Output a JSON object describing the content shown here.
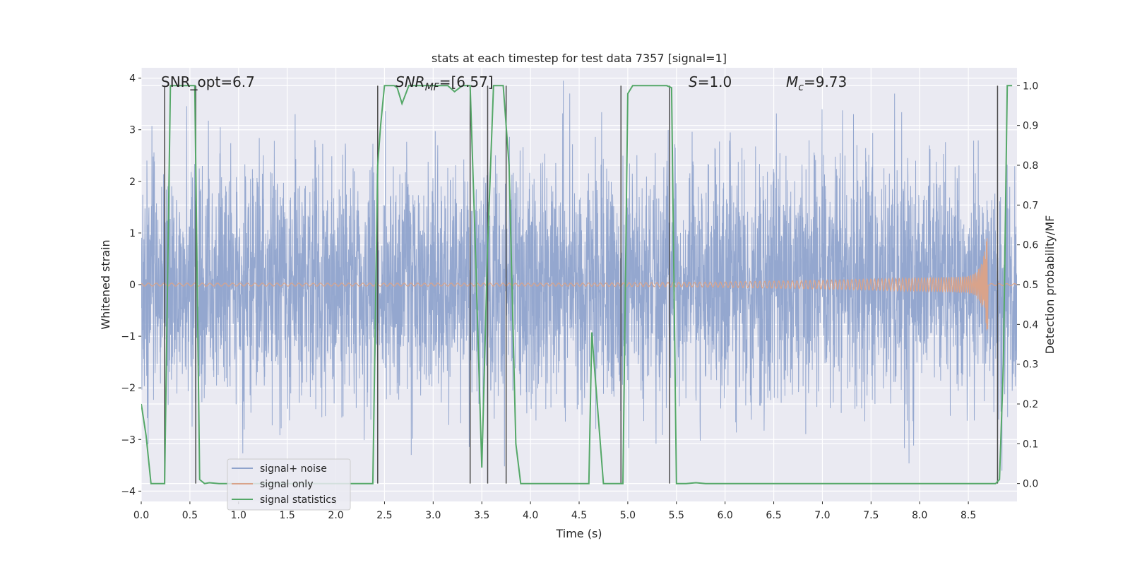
{
  "chart_data": {
    "type": "line",
    "title": "stats at each timestep for test data 7357 [signal=1]",
    "xlabel": "Time (s)",
    "ylabel": "Whitened strain",
    "y2label": "Detection probability/MF",
    "xlim": [
      0.0,
      9.0
    ],
    "ylim": [
      -4.2,
      4.2
    ],
    "y2lim": [
      -0.045,
      1.045
    ],
    "xticks": [
      0.0,
      0.5,
      1.0,
      1.5,
      2.0,
      2.5,
      3.0,
      3.5,
      4.0,
      4.5,
      5.0,
      5.5,
      6.0,
      6.5,
      7.0,
      7.5,
      8.0,
      8.5
    ],
    "xtick_labels": [
      "0.0",
      "0.5",
      "1.0",
      "1.5",
      "2.0",
      "2.5",
      "3.0",
      "3.5",
      "4.0",
      "4.5",
      "5.0",
      "5.5",
      "6.0",
      "6.5",
      "7.0",
      "7.5",
      "8.0",
      "8.5"
    ],
    "yticks": [
      -4,
      -3,
      -2,
      -1,
      0,
      1,
      2,
      3,
      4
    ],
    "ytick_labels": [
      "−4",
      "−3",
      "−2",
      "−1",
      "0",
      "1",
      "2",
      "3",
      "4"
    ],
    "y2ticks": [
      0.0,
      0.1,
      0.2,
      0.3,
      0.4,
      0.5,
      0.6,
      0.7,
      0.8,
      0.9,
      1.0
    ],
    "y2tick_labels": [
      "0.0",
      "0.1",
      "0.2",
      "0.3",
      "0.4",
      "0.5",
      "0.6",
      "0.7",
      "0.8",
      "0.9",
      "1.0"
    ],
    "annotations": {
      "snr_opt": "SNR_opt=6.7",
      "snr_mf_main": "SNR",
      "snr_mf_sub": "MF",
      "snr_mf_value": "=[6.57]",
      "s_main": "S",
      "s_value": "=1.0",
      "mc_main": "M",
      "mc_sub": "c",
      "mc_value": "=9.73"
    },
    "legend": {
      "position": "lower-left",
      "entries": [
        "signal+ noise",
        "signal only",
        "signal statistics"
      ]
    },
    "colors": {
      "background": "#eaeaf2",
      "grid": "#ffffff",
      "noise": "#8fa3cc",
      "signal": "#d9a38a",
      "stats": "#55a868",
      "vline": "#4a4a4a"
    },
    "series": [
      {
        "name": "signal statistics",
        "axis": "right",
        "x": [
          0.0,
          0.05,
          0.1,
          0.24,
          0.3,
          0.38,
          0.5,
          0.55,
          0.6,
          0.65,
          0.7,
          0.8,
          0.9,
          1.0,
          1.5,
          2.0,
          2.3,
          2.38,
          2.43,
          2.46,
          2.5,
          2.6,
          2.63,
          2.68,
          2.75,
          3.0,
          3.15,
          3.22,
          3.3,
          3.38,
          3.43,
          3.5,
          3.56,
          3.62,
          3.65,
          3.72,
          3.78,
          3.85,
          3.9,
          4.0,
          4.2,
          4.4,
          4.5,
          4.6,
          4.63,
          4.75,
          4.8,
          4.9,
          4.95,
          5.0,
          5.05,
          5.1,
          5.4,
          5.45,
          5.5,
          5.6,
          5.7,
          5.8,
          6.0,
          7.0,
          8.0,
          8.78,
          8.82,
          8.86,
          8.9,
          8.95
        ],
        "y": [
          0.2,
          0.12,
          0.0,
          0.0,
          1.0,
          1.0,
          1.0,
          1.0,
          0.01,
          0.0,
          0.002,
          0.0,
          0.0,
          0.0,
          0.0,
          0.0,
          0.0,
          0.0,
          0.8,
          0.9,
          1.0,
          1.0,
          0.995,
          0.955,
          1.0,
          1.0,
          1.0,
          0.985,
          1.0,
          1.0,
          0.62,
          0.04,
          0.6,
          1.0,
          1.0,
          1.0,
          0.8,
          0.1,
          0.0,
          0.0,
          0.0,
          0.0,
          0.0,
          0.0,
          0.38,
          0.0,
          0.0,
          0.0,
          0.0,
          0.98,
          1.0,
          1.0,
          1.0,
          0.995,
          0.0,
          0.0,
          0.002,
          0.0,
          0.0,
          0.0,
          0.0,
          0.0,
          0.01,
          0.3,
          1.0,
          1.0
        ]
      },
      {
        "name": "signal+ noise",
        "axis": "left",
        "description_range": [
          -4.0,
          4.0
        ]
      },
      {
        "name": "signal only",
        "axis": "left",
        "chirp_peak_time": 8.7,
        "chirp_peak_amplitude": 1.15
      }
    ],
    "vlines": [
      0.24,
      0.56,
      2.43,
      3.38,
      3.56,
      3.75,
      4.93,
      5.43,
      8.8
    ]
  }
}
